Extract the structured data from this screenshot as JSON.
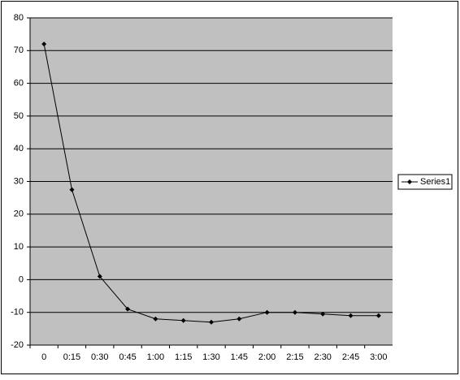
{
  "chart_data": {
    "type": "line",
    "categories": [
      "0",
      "0:15",
      "0:30",
      "0:45",
      "1:00",
      "1:15",
      "1:30",
      "1:45",
      "2:00",
      "2:15",
      "2:30",
      "2:45",
      "3:00"
    ],
    "series": [
      {
        "name": "Series1",
        "color": "#000000",
        "values": [
          72,
          27.5,
          1,
          -9,
          -12,
          -12.5,
          -13,
          -12,
          -10,
          -10,
          -10.5,
          -11,
          -11
        ]
      }
    ],
    "ylim": [
      -20,
      80
    ],
    "yticks": [
      -20,
      -10,
      0,
      10,
      20,
      30,
      40,
      50,
      60,
      70,
      80
    ],
    "grid": true,
    "legend": "right"
  }
}
